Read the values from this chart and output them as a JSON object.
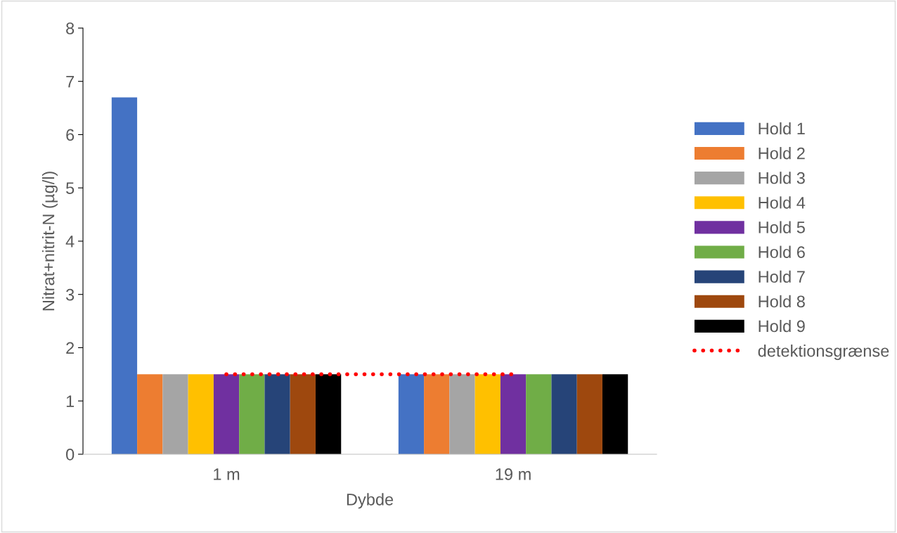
{
  "chart_data": {
    "type": "bar",
    "xlabel": "Dybde",
    "ylabel": "Nitrat+nitrit-N (µg/l)",
    "categories": [
      "1 m",
      "19 m"
    ],
    "series": [
      {
        "name": "Hold 1",
        "color": "#4472c4",
        "values": [
          6.7,
          1.5
        ]
      },
      {
        "name": "Hold 2",
        "color": "#ed7d31",
        "values": [
          1.5,
          1.5
        ]
      },
      {
        "name": "Hold 3",
        "color": "#a5a5a5",
        "values": [
          1.5,
          1.5
        ]
      },
      {
        "name": "Hold 4",
        "color": "#ffc000",
        "values": [
          1.5,
          1.5
        ]
      },
      {
        "name": "Hold 5",
        "color": "#7030a0",
        "values": [
          1.5,
          1.5
        ]
      },
      {
        "name": "Hold 6",
        "color": "#70ad47",
        "values": [
          1.5,
          1.5
        ]
      },
      {
        "name": "Hold 7",
        "color": "#264478",
        "values": [
          1.5,
          1.5
        ]
      },
      {
        "name": "Hold 8",
        "color": "#9e480e",
        "values": [
          1.5,
          1.5
        ]
      },
      {
        "name": "Hold 9",
        "color": "#000000",
        "values": [
          1.5,
          1.5
        ]
      },
      {
        "name": "detektionsgrænse",
        "type": "line",
        "color": "#ff0000",
        "line_style": "dotted",
        "marker": "none",
        "values": [
          1.5,
          1.5
        ]
      }
    ],
    "ylim": [
      0,
      8
    ],
    "yticks": [
      0,
      1,
      2,
      3,
      4,
      5,
      6,
      7,
      8
    ],
    "grid": false,
    "legend": "right"
  }
}
